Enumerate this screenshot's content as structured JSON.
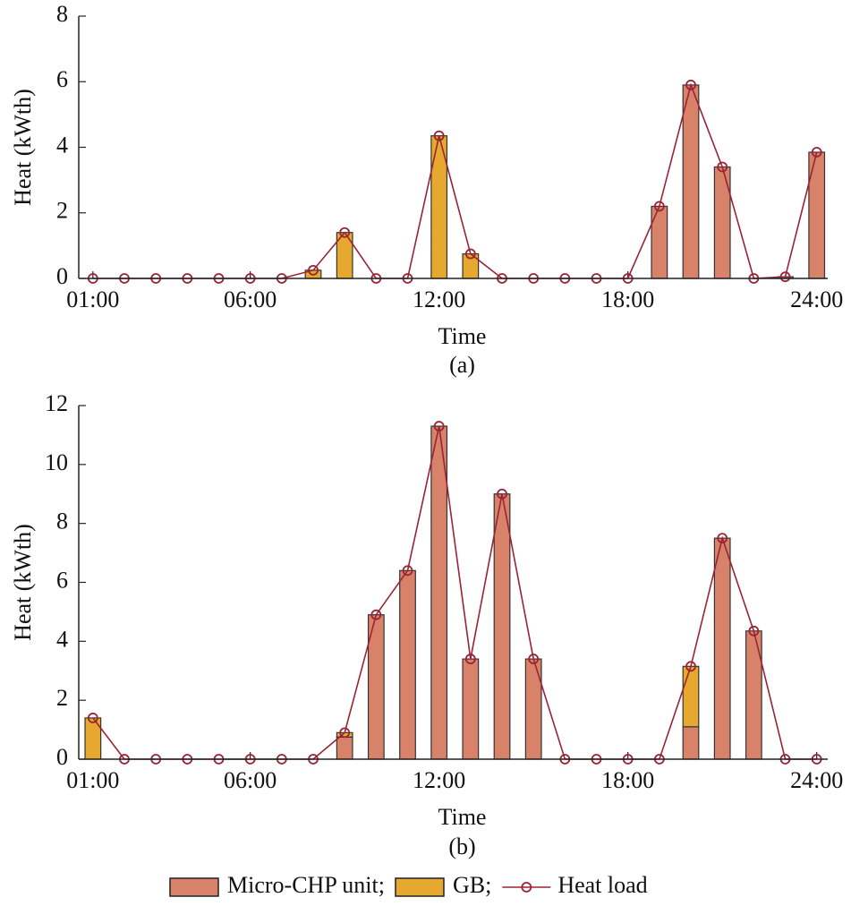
{
  "chart_data": [
    {
      "type": "bar",
      "stacked": true,
      "caption": "(a)",
      "x_label": "Time",
      "y_label": "Heat (kWth)",
      "x": [
        1,
        2,
        3,
        4,
        5,
        6,
        7,
        8,
        9,
        10,
        11,
        12,
        13,
        14,
        15,
        16,
        17,
        18,
        19,
        20,
        21,
        22,
        23,
        24
      ],
      "xlim": [
        0.55,
        24.35
      ],
      "xticks": [
        {
          "value": 1,
          "label": "01:00"
        },
        {
          "value": 6,
          "label": "06:00"
        },
        {
          "value": 12,
          "label": "12:00"
        },
        {
          "value": 18,
          "label": "18:00"
        },
        {
          "value": 24,
          "label": "24:00"
        }
      ],
      "ylim": [
        0,
        8
      ],
      "yticks": [
        0,
        2,
        4,
        6,
        8
      ],
      "series": [
        {
          "name": "Micro-CHP unit;",
          "type": "bar",
          "color": "#d9826a",
          "values": [
            0,
            0,
            0,
            0,
            0,
            0,
            0,
            0,
            0,
            0,
            0,
            0,
            0,
            0,
            0,
            0,
            0,
            0,
            2.2,
            5.9,
            3.4,
            0,
            0.05,
            3.85
          ]
        },
        {
          "name": "GB;",
          "type": "bar",
          "color": "#e6a82e",
          "values": [
            0,
            0,
            0,
            0,
            0,
            0,
            0,
            0.25,
            1.4,
            0,
            0,
            4.35,
            0.75,
            0,
            0,
            0,
            0,
            0,
            0,
            0,
            0,
            0,
            0,
            0
          ]
        },
        {
          "name": "Heat load",
          "type": "line",
          "color": "#9b2335",
          "values": [
            0,
            0,
            0,
            0,
            0,
            0,
            0,
            0.25,
            1.4,
            0,
            0,
            4.35,
            0.75,
            0,
            0,
            0,
            0,
            0,
            2.2,
            5.9,
            3.4,
            0,
            0.05,
            3.85
          ]
        }
      ]
    },
    {
      "type": "bar",
      "stacked": true,
      "caption": "(b)",
      "x_label": "Time",
      "y_label": "Heat (kWth)",
      "x": [
        1,
        2,
        3,
        4,
        5,
        6,
        7,
        8,
        9,
        10,
        11,
        12,
        13,
        14,
        15,
        16,
        17,
        18,
        19,
        20,
        21,
        22,
        23,
        24
      ],
      "xlim": [
        0.55,
        24.35
      ],
      "xticks": [
        {
          "value": 1,
          "label": "01:00"
        },
        {
          "value": 6,
          "label": "06:00"
        },
        {
          "value": 12,
          "label": "12:00"
        },
        {
          "value": 18,
          "label": "18:00"
        },
        {
          "value": 24,
          "label": "24:00"
        }
      ],
      "ylim": [
        0,
        12
      ],
      "yticks": [
        0,
        2,
        4,
        6,
        8,
        10,
        12
      ],
      "series": [
        {
          "name": "Micro-CHP unit;",
          "type": "bar",
          "color": "#d9826a",
          "values": [
            0,
            0,
            0,
            0,
            0,
            0,
            0,
            0,
            0.75,
            4.9,
            6.4,
            11.3,
            3.4,
            9.0,
            3.4,
            0,
            0,
            0,
            0,
            1.1,
            7.5,
            4.35,
            0,
            0
          ]
        },
        {
          "name": "GB;",
          "type": "bar",
          "color": "#e6a82e",
          "values": [
            1.4,
            0,
            0,
            0,
            0,
            0,
            0,
            0,
            0.15,
            0,
            0,
            0,
            0,
            0,
            0,
            0,
            0,
            0,
            0,
            2.05,
            0,
            0,
            0,
            0
          ]
        },
        {
          "name": "Heat load",
          "type": "line",
          "color": "#9b2335",
          "values": [
            1.4,
            0,
            0,
            0,
            0,
            0,
            0,
            0,
            0.9,
            4.9,
            6.4,
            11.3,
            3.4,
            9.0,
            3.4,
            0,
            0,
            0,
            0,
            3.15,
            7.5,
            4.35,
            0,
            0
          ]
        }
      ]
    }
  ]
}
